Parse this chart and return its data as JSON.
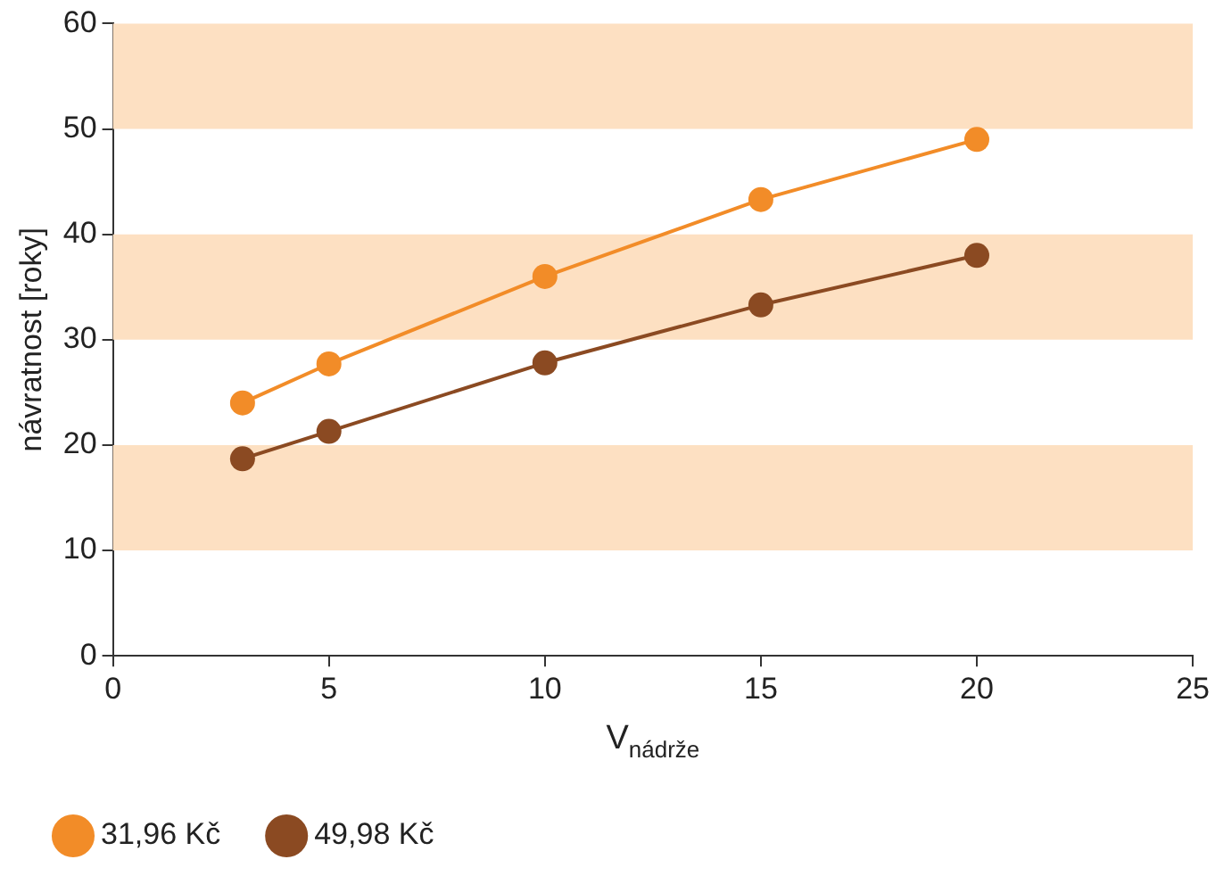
{
  "chart_data": {
    "type": "line",
    "xlabel": "V$_{nádrže}$",
    "ylabel": "návratnost [roky]",
    "xlim": [
      0,
      25
    ],
    "xticks": [
      0,
      5,
      10,
      15,
      20,
      25
    ],
    "ylim": [
      0,
      60
    ],
    "yticks": [
      0,
      10,
      20,
      30,
      40,
      50,
      60
    ],
    "x": [
      3,
      5,
      10,
      15,
      20
    ],
    "series": [
      {
        "name": "31,96 Kč",
        "color": "#f28c28",
        "values": [
          24,
          27.7,
          36,
          43.3,
          49
        ]
      },
      {
        "name": "49,98 Kč",
        "color": "#8b4a22",
        "values": [
          18.7,
          21.3,
          27.8,
          33.3,
          38
        ]
      }
    ],
    "bands": [
      {
        "axis": "y",
        "from": 10,
        "to": 20,
        "color": "#fde0c2"
      },
      {
        "axis": "y",
        "from": 30,
        "to": 40,
        "color": "#fde0c2"
      },
      {
        "axis": "y",
        "from": 50,
        "to": 60,
        "color": "#fde0c2"
      }
    ],
    "grid": false,
    "legend": "bottom left",
    "marker": "circle",
    "line_style": "solid"
  }
}
